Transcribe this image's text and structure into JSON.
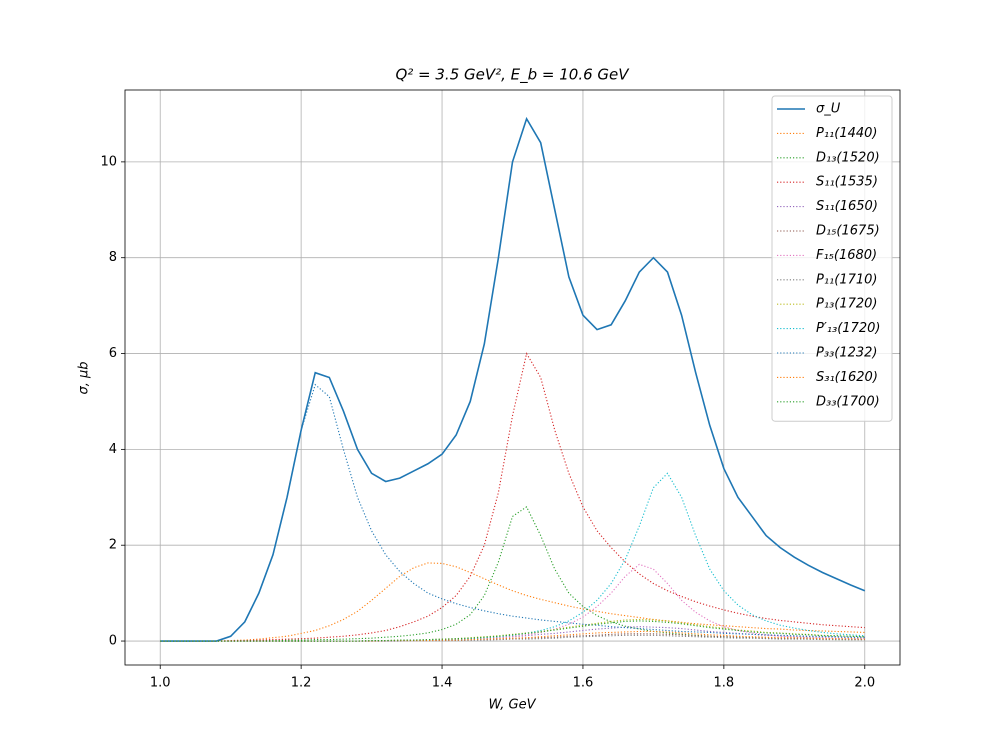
{
  "chart_data": {
    "type": "line",
    "title": "Q² = 3.5 GeV²,  E_b = 10.6 GeV",
    "xlabel": "W, GeV",
    "ylabel": "σ, μb",
    "xlim": [
      0.95,
      2.05
    ],
    "ylim": [
      -0.5,
      11.5
    ],
    "xticks": [
      {
        "value": 1,
        "label": "1.0"
      },
      1.2,
      1.4,
      1.6,
      1.8,
      {
        "value": 2,
        "label": "2.0"
      }
    ],
    "yticks": [
      0,
      2,
      4,
      6,
      8,
      10
    ],
    "grid": true,
    "legend": "upper right",
    "x": [
      1.0,
      1.02,
      1.04,
      1.06,
      1.08,
      1.1,
      1.12,
      1.14,
      1.16,
      1.18,
      1.2,
      1.22,
      1.24,
      1.26,
      1.28,
      1.3,
      1.32,
      1.34,
      1.36,
      1.38,
      1.4,
      1.42,
      1.44,
      1.46,
      1.48,
      1.5,
      1.52,
      1.54,
      1.56,
      1.58,
      1.6,
      1.62,
      1.64,
      1.66,
      1.68,
      1.7,
      1.72,
      1.74,
      1.76,
      1.78,
      1.8,
      1.82,
      1.84,
      1.86,
      1.88,
      1.9,
      1.92,
      1.94,
      1.96,
      1.98,
      2.0
    ],
    "series": [
      {
        "name": "σ_U",
        "color": "#1f77b4",
        "style": "solid",
        "values": [
          0,
          0,
          0,
          0,
          0,
          0.1,
          0.4,
          1.0,
          1.8,
          3.0,
          4.4,
          5.6,
          5.5,
          4.8,
          4.0,
          3.5,
          3.33,
          3.4,
          3.55,
          3.7,
          3.9,
          4.3,
          5.0,
          6.2,
          8.0,
          10.0,
          10.9,
          10.4,
          9.0,
          7.6,
          6.8,
          6.5,
          6.6,
          7.1,
          7.7,
          8.0,
          7.7,
          6.8,
          5.6,
          4.5,
          3.6,
          3.0,
          2.6,
          2.2,
          1.95,
          1.75,
          1.58,
          1.43,
          1.3,
          1.17,
          1.05
        ]
      },
      {
        "name": "P₁₁(1440)",
        "color": "#ff7f0e",
        "style": "dotted",
        "values": [
          0,
          0,
          0,
          0,
          0,
          0.01,
          0.02,
          0.04,
          0.07,
          0.1,
          0.16,
          0.22,
          0.32,
          0.45,
          0.62,
          0.85,
          1.1,
          1.35,
          1.53,
          1.63,
          1.62,
          1.55,
          1.43,
          1.3,
          1.17,
          1.05,
          0.95,
          0.87,
          0.8,
          0.73,
          0.67,
          0.62,
          0.57,
          0.53,
          0.49,
          0.45,
          0.42,
          0.39,
          0.36,
          0.34,
          0.32,
          0.3,
          0.28,
          0.26,
          0.25,
          0.23,
          0.22,
          0.21,
          0.2,
          0.19,
          0.18
        ]
      },
      {
        "name": "D₁₃(1520)",
        "color": "#2ca02c",
        "style": "dotted",
        "values": [
          0,
          0,
          0,
          0,
          0,
          0,
          0.01,
          0.01,
          0.01,
          0.02,
          0.02,
          0.03,
          0.03,
          0.04,
          0.05,
          0.06,
          0.08,
          0.1,
          0.13,
          0.17,
          0.24,
          0.35,
          0.55,
          0.95,
          1.65,
          2.6,
          2.8,
          2.2,
          1.5,
          1.0,
          0.72,
          0.53,
          0.4,
          0.31,
          0.25,
          0.2,
          0.17,
          0.14,
          0.12,
          0.1,
          0.09,
          0.08,
          0.07,
          0.06,
          0.05,
          0.05,
          0.04,
          0.04,
          0.03,
          0.03,
          0.03
        ]
      },
      {
        "name": "S₁₁(1535)",
        "color": "#d62728",
        "style": "dotted",
        "values": [
          0,
          0,
          0,
          0,
          0,
          0.01,
          0.01,
          0.02,
          0.03,
          0.04,
          0.05,
          0.06,
          0.08,
          0.1,
          0.13,
          0.17,
          0.22,
          0.3,
          0.4,
          0.52,
          0.7,
          0.95,
          1.35,
          2.0,
          3.1,
          4.7,
          6.0,
          5.5,
          4.4,
          3.5,
          2.8,
          2.3,
          1.95,
          1.65,
          1.4,
          1.2,
          1.05,
          0.93,
          0.82,
          0.73,
          0.65,
          0.58,
          0.52,
          0.47,
          0.43,
          0.4,
          0.37,
          0.34,
          0.32,
          0.3,
          0.28
        ]
      },
      {
        "name": "S₁₁(1650)",
        "color": "#9467bd",
        "style": "dotted",
        "values": [
          0,
          0,
          0,
          0,
          0,
          0,
          0,
          0,
          0,
          0,
          0,
          0,
          0,
          0,
          0,
          0.01,
          0.01,
          0.01,
          0.02,
          0.02,
          0.03,
          0.04,
          0.05,
          0.06,
          0.07,
          0.09,
          0.11,
          0.14,
          0.16,
          0.19,
          0.22,
          0.25,
          0.27,
          0.29,
          0.3,
          0.29,
          0.28,
          0.26,
          0.23,
          0.2,
          0.18,
          0.16,
          0.14,
          0.12,
          0.11,
          0.1,
          0.09,
          0.08,
          0.08,
          0.07,
          0.06
        ]
      },
      {
        "name": "D₁₅(1675)",
        "color": "#8c564b",
        "style": "dotted",
        "values": [
          0,
          0,
          0,
          0,
          0,
          0,
          0,
          0,
          0,
          0,
          0,
          0,
          0,
          0,
          0,
          0,
          0,
          0.01,
          0.01,
          0.01,
          0.01,
          0.02,
          0.02,
          0.03,
          0.04,
          0.05,
          0.06,
          0.07,
          0.08,
          0.1,
          0.11,
          0.12,
          0.14,
          0.15,
          0.15,
          0.15,
          0.14,
          0.13,
          0.11,
          0.1,
          0.09,
          0.08,
          0.07,
          0.06,
          0.06,
          0.05,
          0.05,
          0.04,
          0.04,
          0.03,
          0.03
        ]
      },
      {
        "name": "F₁₅(1680)",
        "color": "#e377c2",
        "style": "dotted",
        "values": [
          0,
          0,
          0,
          0,
          0,
          0,
          0,
          0,
          0,
          0,
          0,
          0,
          0,
          0,
          0,
          0,
          0,
          0,
          0.01,
          0.01,
          0.02,
          0.03,
          0.04,
          0.05,
          0.07,
          0.1,
          0.13,
          0.18,
          0.25,
          0.35,
          0.5,
          0.72,
          1.0,
          1.35,
          1.6,
          1.5,
          1.2,
          0.85,
          0.6,
          0.42,
          0.3,
          0.22,
          0.17,
          0.13,
          0.1,
          0.08,
          0.07,
          0.06,
          0.05,
          0.04,
          0.04
        ]
      },
      {
        "name": "P₁₁(1710)",
        "color": "#7f7f7f",
        "style": "dotted",
        "values": [
          0,
          0,
          0,
          0,
          0,
          0,
          0,
          0,
          0,
          0,
          0,
          0,
          0,
          0,
          0,
          0,
          0,
          0,
          0.01,
          0.01,
          0.01,
          0.01,
          0.02,
          0.02,
          0.03,
          0.04,
          0.04,
          0.05,
          0.06,
          0.08,
          0.09,
          0.1,
          0.11,
          0.12,
          0.12,
          0.12,
          0.11,
          0.1,
          0.09,
          0.08,
          0.07,
          0.06,
          0.06,
          0.05,
          0.04,
          0.04,
          0.04,
          0.03,
          0.03,
          0.03,
          0.03
        ]
      },
      {
        "name": "P₁₃(1720)",
        "color": "#bcbd22",
        "style": "dotted",
        "values": [
          0,
          0,
          0,
          0,
          0,
          0,
          0,
          0,
          0,
          0,
          0,
          0,
          0,
          0,
          0,
          0.01,
          0.01,
          0.02,
          0.02,
          0.03,
          0.04,
          0.05,
          0.07,
          0.09,
          0.11,
          0.14,
          0.17,
          0.2,
          0.24,
          0.29,
          0.33,
          0.37,
          0.41,
          0.44,
          0.45,
          0.44,
          0.42,
          0.38,
          0.34,
          0.3,
          0.27,
          0.23,
          0.21,
          0.18,
          0.17,
          0.15,
          0.14,
          0.12,
          0.11,
          0.1,
          0.09
        ]
      },
      {
        "name": "P′₁₃(1720)",
        "color": "#17becf",
        "style": "dotted",
        "values": [
          0,
          0,
          0,
          0,
          0,
          0,
          0,
          0,
          0,
          0,
          0,
          0,
          0,
          0,
          0,
          0,
          0.01,
          0.01,
          0.02,
          0.02,
          0.03,
          0.04,
          0.05,
          0.07,
          0.09,
          0.12,
          0.16,
          0.22,
          0.3,
          0.42,
          0.6,
          0.85,
          1.2,
          1.7,
          2.4,
          3.2,
          3.5,
          3.0,
          2.2,
          1.5,
          1.05,
          0.75,
          0.55,
          0.42,
          0.33,
          0.27,
          0.22,
          0.18,
          0.15,
          0.13,
          0.11
        ]
      },
      {
        "name": "P₃₃(1232)",
        "color": "#1f77b4",
        "style": "dotted",
        "values": [
          0,
          0,
          0,
          0,
          0,
          0.1,
          0.4,
          1.0,
          1.8,
          3.0,
          4.4,
          5.35,
          5.1,
          4.0,
          3.0,
          2.3,
          1.8,
          1.45,
          1.2,
          1.0,
          0.88,
          0.78,
          0.7,
          0.63,
          0.57,
          0.52,
          0.48,
          0.44,
          0.41,
          0.38,
          0.35,
          0.33,
          0.3,
          0.28,
          0.26,
          0.24,
          0.22,
          0.2,
          0.19,
          0.18,
          0.16,
          0.15,
          0.14,
          0.13,
          0.12,
          0.11,
          0.1,
          0.1,
          0.09,
          0.08,
          0.08
        ]
      },
      {
        "name": "S₃₁(1620)",
        "color": "#ff7f0e",
        "style": "dotted",
        "values": [
          0,
          0,
          0,
          0,
          0,
          0,
          0,
          0,
          0,
          0,
          0,
          0,
          0,
          0,
          0,
          0,
          0.01,
          0.01,
          0.01,
          0.01,
          0.02,
          0.02,
          0.03,
          0.04,
          0.05,
          0.06,
          0.07,
          0.09,
          0.11,
          0.13,
          0.15,
          0.17,
          0.18,
          0.19,
          0.2,
          0.2,
          0.19,
          0.17,
          0.15,
          0.13,
          0.12,
          0.1,
          0.09,
          0.08,
          0.07,
          0.07,
          0.06,
          0.05,
          0.05,
          0.05,
          0.04
        ]
      },
      {
        "name": "D₃₃(1700)",
        "color": "#2ca02c",
        "style": "dotted",
        "values": [
          0,
          0,
          0,
          0,
          0,
          0,
          0,
          0,
          0,
          0,
          0,
          0,
          0,
          0,
          0,
          0.01,
          0.01,
          0.02,
          0.02,
          0.03,
          0.04,
          0.05,
          0.06,
          0.08,
          0.1,
          0.13,
          0.16,
          0.19,
          0.23,
          0.27,
          0.31,
          0.35,
          0.38,
          0.41,
          0.42,
          0.41,
          0.39,
          0.36,
          0.32,
          0.28,
          0.25,
          0.22,
          0.19,
          0.17,
          0.16,
          0.14,
          0.13,
          0.11,
          0.11,
          0.1,
          0.09
        ]
      }
    ]
  }
}
